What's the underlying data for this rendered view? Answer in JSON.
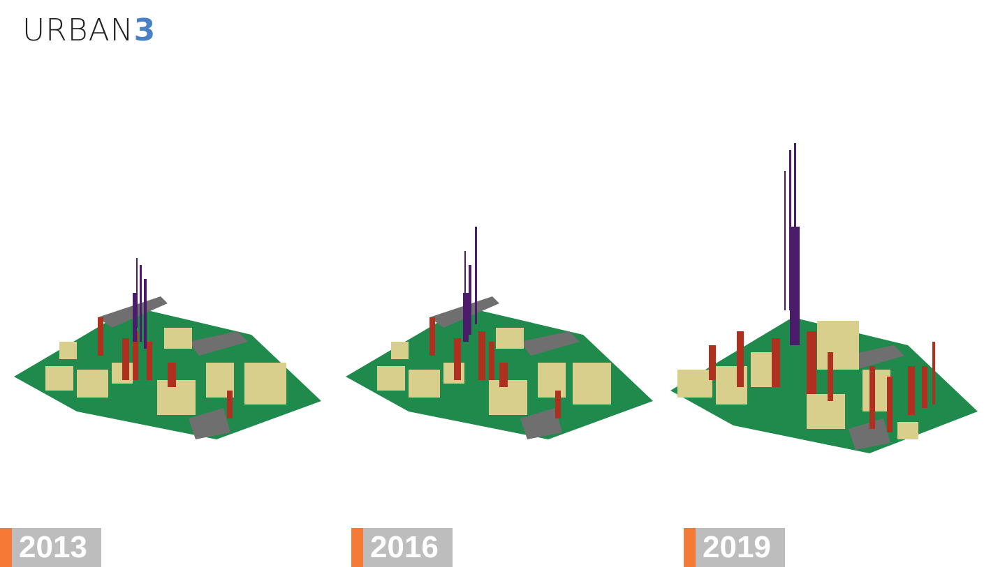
{
  "logo": {
    "text_main": "URBAN",
    "text_accent": "3"
  },
  "colors": {
    "accent_orange": "#f47a35",
    "label_gray": "#bdbdbd",
    "logo_blue": "#4a80c4",
    "ground_green": "#1f8a4c",
    "road_gray": "#6f6f6f",
    "low_tan": "#d8cf8c",
    "mid_red": "#b0301f",
    "high_purple": "#4b1c6b"
  },
  "panels": [
    {
      "year": "2013"
    },
    {
      "year": "2016"
    },
    {
      "year": "2019"
    }
  ]
}
